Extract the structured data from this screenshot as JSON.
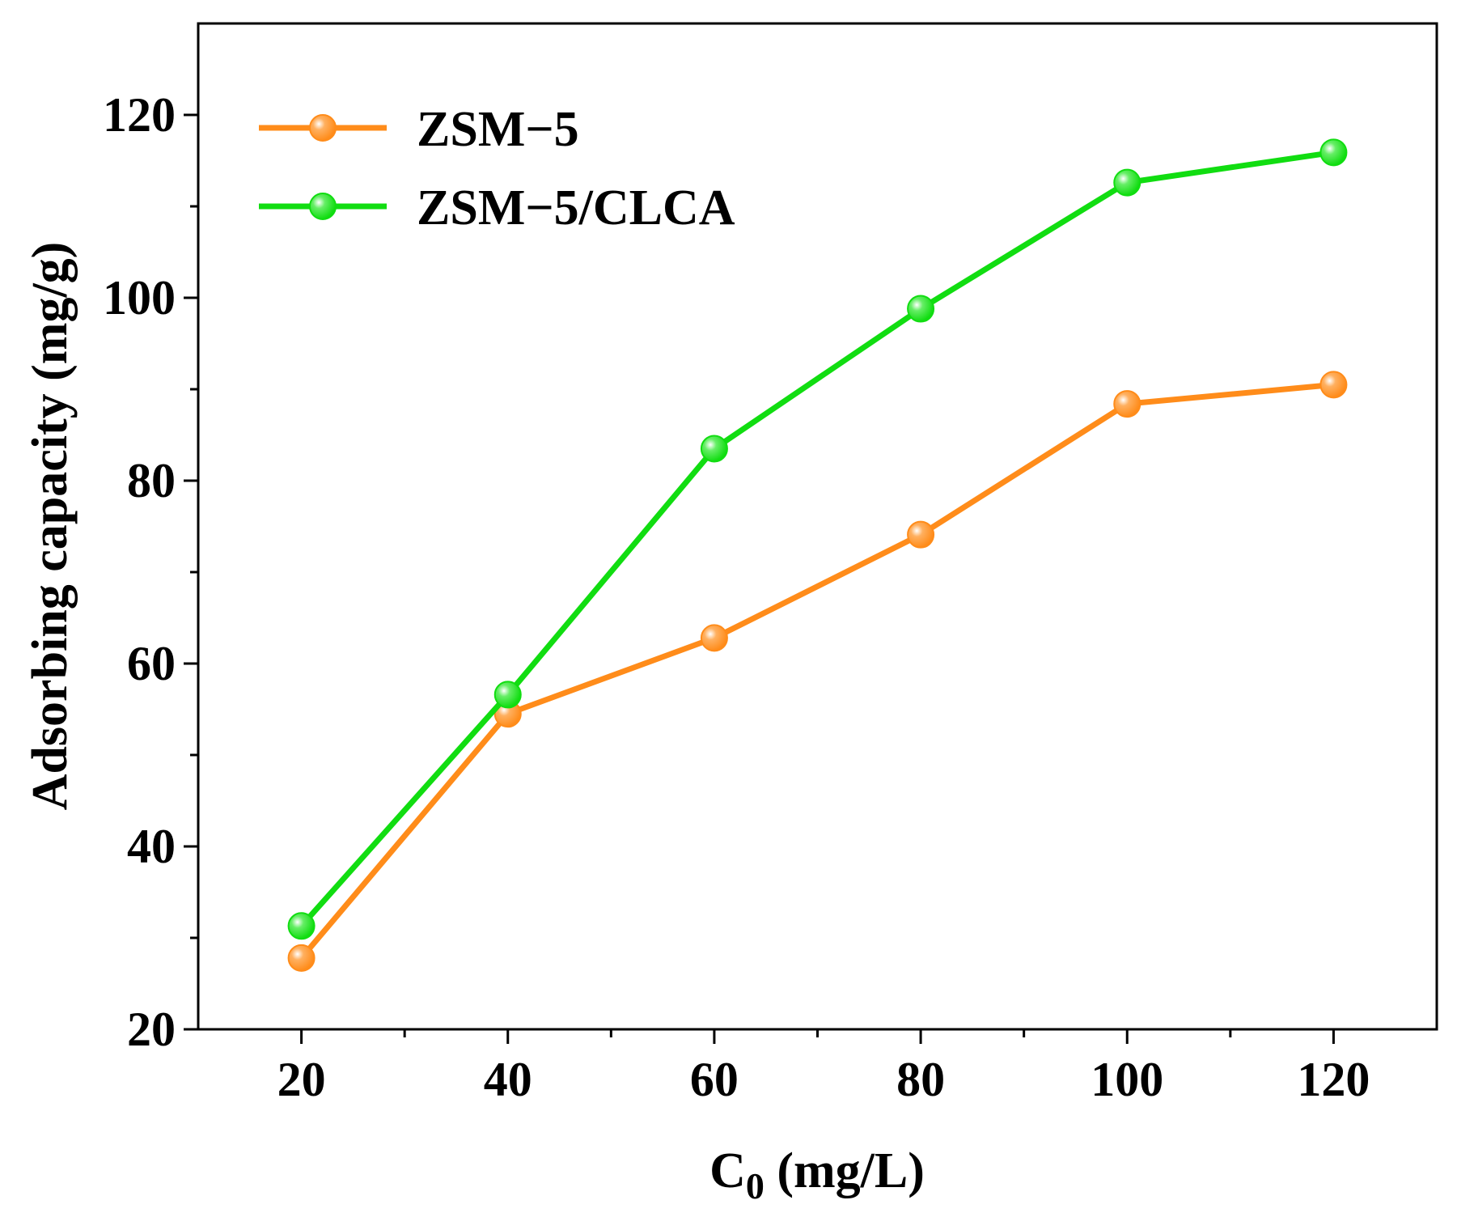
{
  "chart_data": {
    "type": "line",
    "title": "",
    "xlabel_main": "C",
    "xlabel_sub": "0",
    "xlabel_rest": " (mg/L)",
    "ylabel": "Adsorbing capacity (mg/g)",
    "x": [
      20,
      40,
      60,
      80,
      100,
      120
    ],
    "xlim": [
      10,
      130
    ],
    "ylim": [
      20,
      130
    ],
    "x_ticks": [
      20,
      40,
      60,
      80,
      100,
      120
    ],
    "x_minor_ticks": [
      30,
      50,
      70,
      90,
      110
    ],
    "y_ticks": [
      20,
      40,
      60,
      80,
      100,
      120
    ],
    "y_minor_ticks": [
      30,
      50,
      70,
      90,
      110
    ],
    "legend_position": "top-left",
    "grid": false,
    "series": [
      {
        "name": "ZSM−5",
        "color": "#FF8C1A",
        "values": [
          27.8,
          54.5,
          62.8,
          74.1,
          88.4,
          90.5
        ]
      },
      {
        "name": "ZSM−5/CLCA",
        "color": "#11DD11",
        "values": [
          31.3,
          56.6,
          83.5,
          98.8,
          112.6,
          115.9
        ]
      }
    ]
  }
}
